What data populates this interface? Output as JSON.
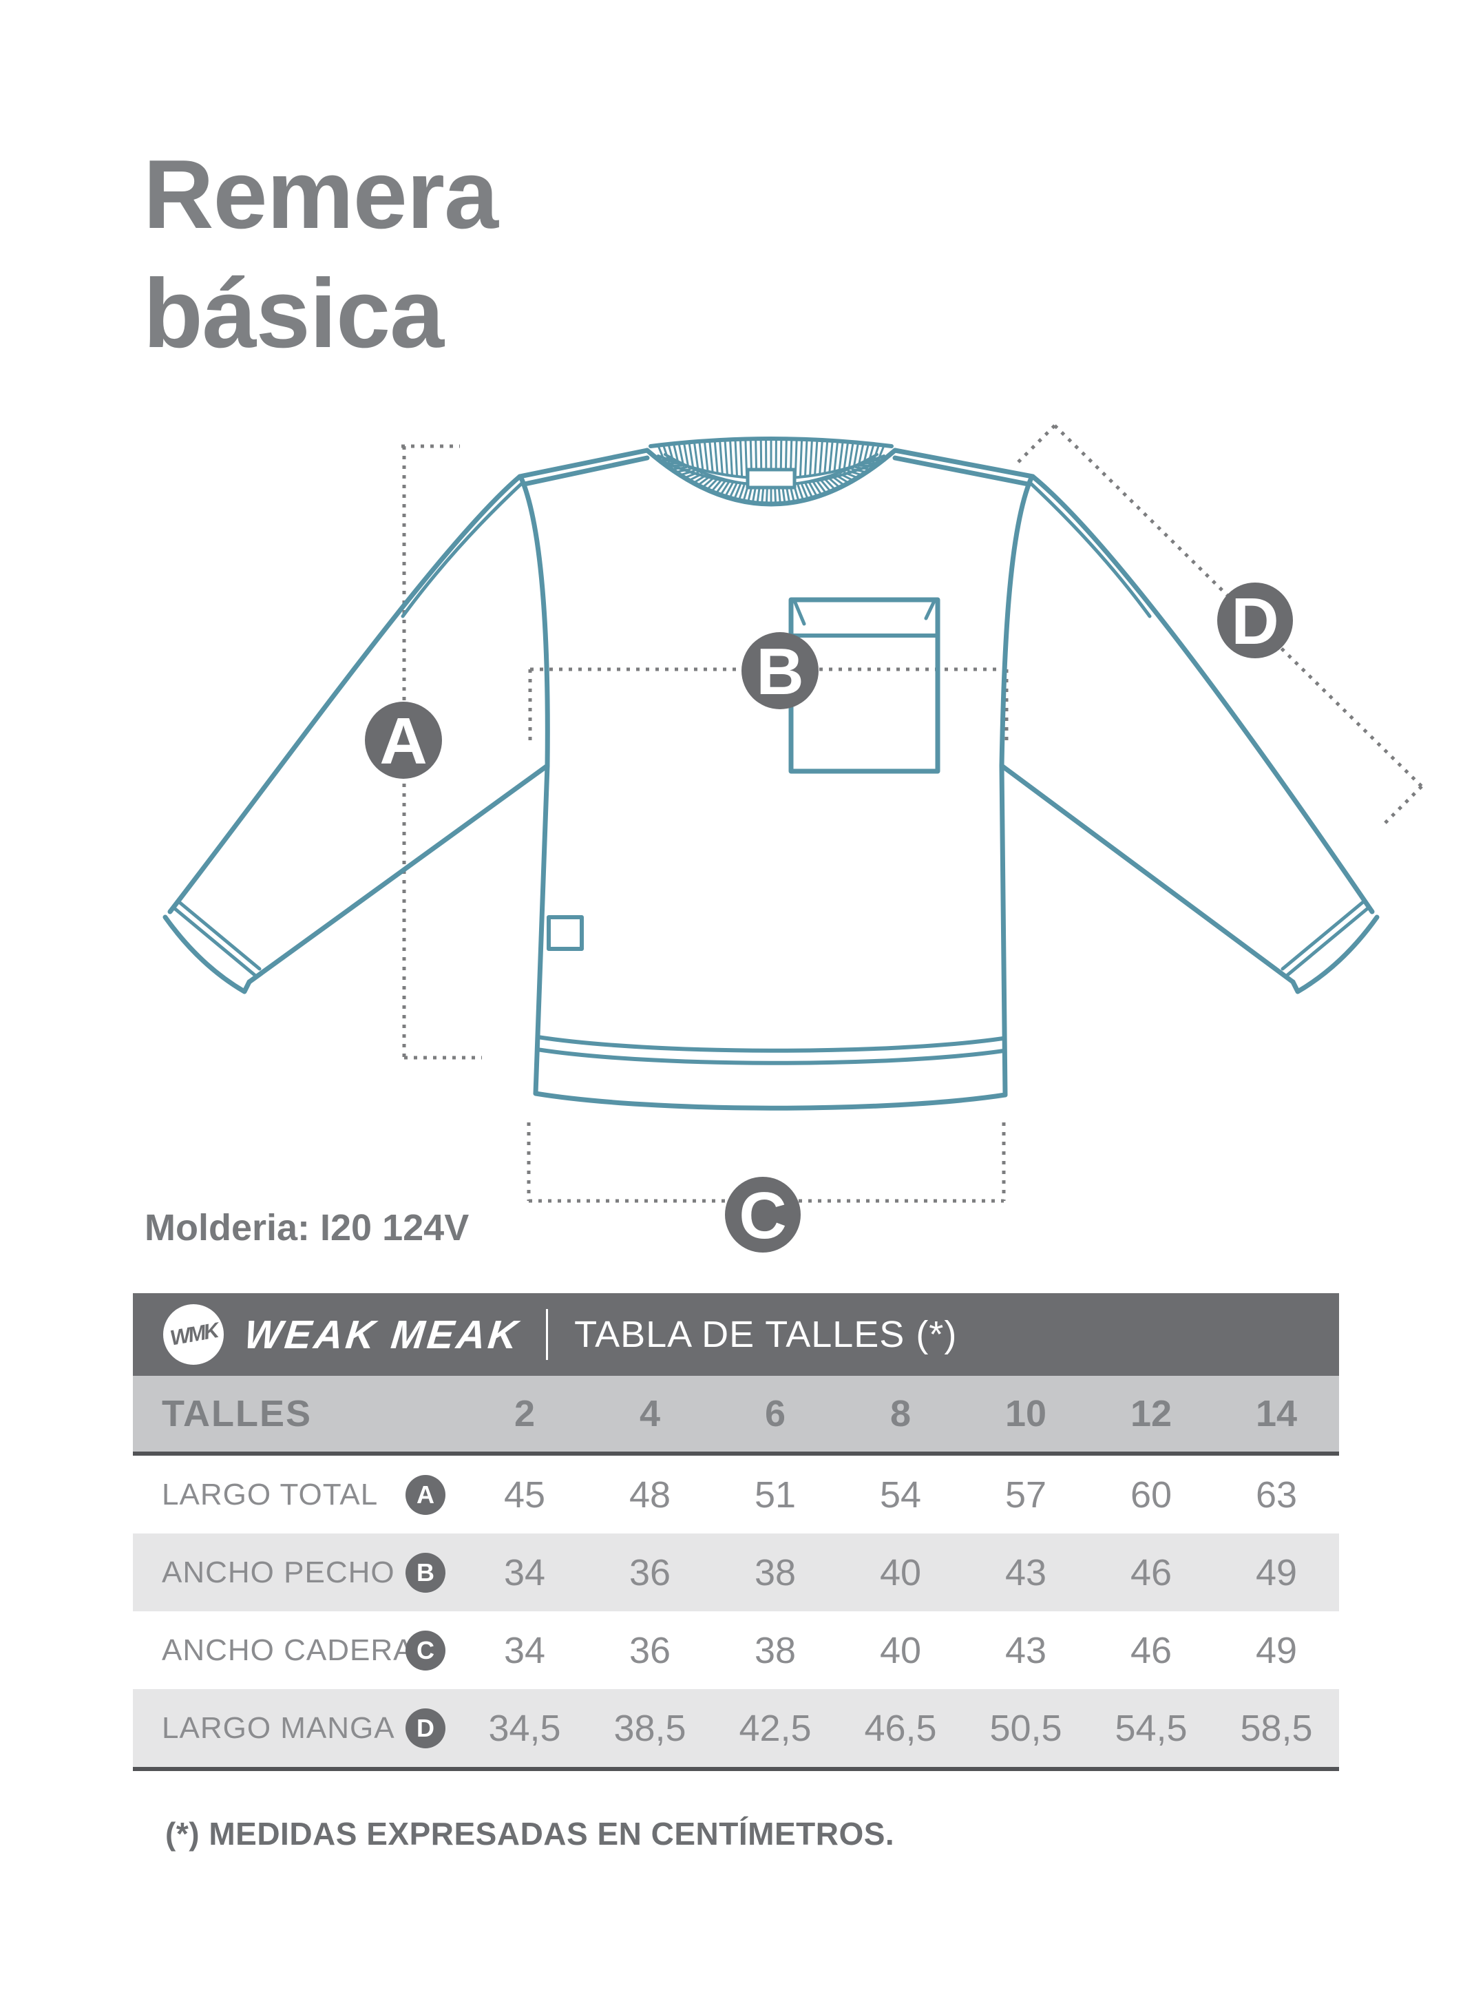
{
  "page": {
    "title_line1": "Remera",
    "title_line2": "básica",
    "pattern_code": "Molderia: I20 124V",
    "footnote": "(*) MEDIDAS EXPRESADAS EN CENTÍMETROS."
  },
  "diagram": {
    "markers": [
      "A",
      "B",
      "C",
      "D"
    ],
    "colors": {
      "garment_line": "#5793a6",
      "marker_fill": "#6b6c6f",
      "dotted_line": "#7c7d7f"
    }
  },
  "table": {
    "brand": {
      "monogram": "WMK",
      "name": "WEAK MEAK"
    },
    "header_title": "TABLA DE TALLES (*)",
    "header_bg": "#6c6d70",
    "sizes_label": "TALLES",
    "sizes": [
      "2",
      "4",
      "6",
      "8",
      "10",
      "12",
      "14"
    ],
    "rows": [
      {
        "label": "LARGO TOTAL",
        "badge": "A",
        "values": [
          "45",
          "48",
          "51",
          "54",
          "57",
          "60",
          "63"
        ]
      },
      {
        "label": "ANCHO PECHO",
        "badge": "B",
        "values": [
          "34",
          "36",
          "38",
          "40",
          "43",
          "46",
          "49"
        ]
      },
      {
        "label": "ANCHO CADERA",
        "badge": "C",
        "values": [
          "34",
          "36",
          "38",
          "40",
          "43",
          "46",
          "49"
        ]
      },
      {
        "label": "LARGO MANGA",
        "badge": "D",
        "values": [
          "34,5",
          "38,5",
          "42,5",
          "46,5",
          "50,5",
          "54,5",
          "58,5"
        ]
      }
    ]
  }
}
